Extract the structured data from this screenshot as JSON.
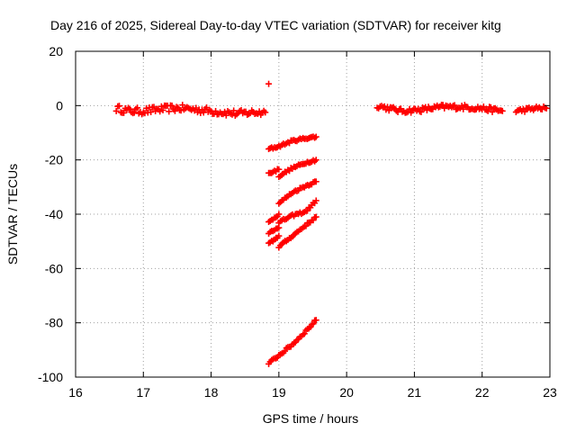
{
  "chart_data": {
    "type": "scatter",
    "title": "Day 216 of 2025, Sidereal Day-to-day VTEC variation (SDTVAR) for receiver kitg",
    "xlabel": "GPS time / hours",
    "ylabel": "SDTVAR / TECUs",
    "xlim": [
      16,
      23
    ],
    "ylim": [
      -100,
      20
    ],
    "xticks": [
      16,
      17,
      18,
      19,
      20,
      21,
      22,
      23
    ],
    "yticks": [
      -100,
      -80,
      -60,
      -40,
      -20,
      0,
      20
    ],
    "grid": true,
    "marker": "plus",
    "color": "#ff0000",
    "series": [
      {
        "segments": [
          {
            "x": [
              16.6,
              16.8,
              17.0,
              17.2,
              17.4,
              17.6,
              17.8,
              18.0,
              18.2,
              18.4,
              18.6,
              18.8
            ],
            "y": [
              -1,
              -2,
              -2,
              -1.5,
              -1,
              -1,
              -1.5,
              -2,
              -2.5,
              -3,
              -2.5,
              -2.5
            ],
            "spread": 2.5
          },
          {
            "x": [
              18.85
            ],
            "y": [
              8
            ],
            "spread": 0
          },
          {
            "x": [
              20.45,
              20.8,
              21.1,
              21.4,
              21.7,
              22.0,
              22.3
            ],
            "y": [
              0,
              -2,
              -1.5,
              -0.5,
              -0.5,
              -1,
              -2
            ],
            "spread": 1.8
          },
          {
            "x": [
              22.5,
              22.8,
              22.95
            ],
            "y": [
              -2,
              -1,
              -1
            ],
            "spread": 1.5
          },
          {
            "x": [
              18.85,
              19.0,
              19.2,
              19.4,
              19.55
            ],
            "y": [
              -16,
              -15,
              -13,
              -12,
              -11.5
            ],
            "spread": 0.8
          },
          {
            "x": [
              18.85,
              19.0
            ],
            "y": [
              -25,
              -23.5
            ],
            "spread": 0.8
          },
          {
            "x": [
              19.0,
              19.2,
              19.4,
              19.55
            ],
            "y": [
              -26,
              -23,
              -21,
              -20
            ],
            "spread": 0.8
          },
          {
            "x": [
              19.0,
              19.2,
              19.4,
              19.55
            ],
            "y": [
              -36,
              -32,
              -29.5,
              -28
            ],
            "spread": 0.8
          },
          {
            "x": [
              18.85,
              19.0
            ],
            "y": [
              -43,
              -40
            ],
            "spread": 0.8
          },
          {
            "x": [
              19.0,
              19.2,
              19.4,
              19.55
            ],
            "y": [
              -43,
              -40.5,
              -39,
              -35
            ],
            "spread": 0.8
          },
          {
            "x": [
              18.85,
              19.0
            ],
            "y": [
              -47,
              -45
            ],
            "spread": 0.8
          },
          {
            "x": [
              18.85,
              19.0
            ],
            "y": [
              -51,
              -48
            ],
            "spread": 0.8
          },
          {
            "x": [
              19.0,
              19.2,
              19.4,
              19.55
            ],
            "y": [
              -52,
              -48,
              -44,
              -41
            ],
            "spread": 0.8
          },
          {
            "x": [
              18.85,
              19.0,
              19.2,
              19.4,
              19.55
            ],
            "y": [
              -95,
              -92,
              -88,
              -83,
              -79
            ],
            "spread": 1.0
          }
        ]
      }
    ]
  }
}
